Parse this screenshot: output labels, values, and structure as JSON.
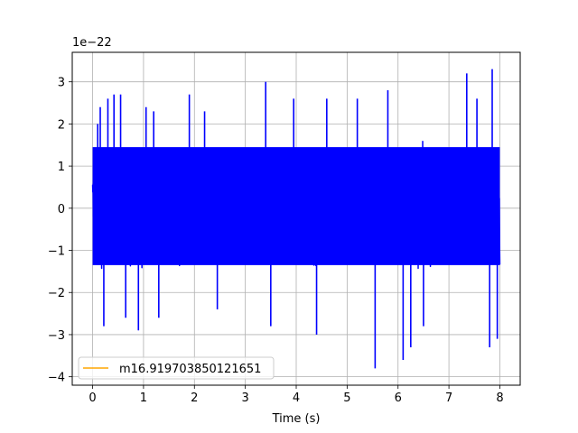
{
  "chart_data": {
    "type": "line",
    "xlabel": "Time (s)",
    "ylabel": "",
    "y_offset_label": "1e−22",
    "xlim": [
      -0.4,
      8.4
    ],
    "ylim": [
      -4.2,
      3.7
    ],
    "x_ticks": [
      0,
      1,
      2,
      3,
      4,
      5,
      6,
      7,
      8
    ],
    "x_tick_labels": [
      "0",
      "1",
      "2",
      "3",
      "4",
      "5",
      "6",
      "7",
      "8"
    ],
    "y_ticks": [
      -4,
      -3,
      -2,
      -1,
      0,
      1,
      2,
      3
    ],
    "y_tick_labels": [
      "−4",
      "−3",
      "−2",
      "−1",
      "0",
      "1",
      "2",
      "3"
    ],
    "grid": true,
    "legend_position": "lower-left",
    "series": [
      {
        "name": "",
        "color": "#0000ff",
        "x_range": [
          0,
          8
        ],
        "y_envelope": [
          -3.8,
          3.3
        ],
        "description_values": {
          "typical_upper": 1.7,
          "typical_lower": -1.7,
          "peak_max": 3.3,
          "peak_min": -3.8
        }
      },
      {
        "name": "m16.919703850121651",
        "color": "#ffa500",
        "values": []
      }
    ],
    "spikes": [
      {
        "x": 0.1,
        "y": 2.0
      },
      {
        "x": 0.15,
        "y": 2.4
      },
      {
        "x": 0.22,
        "y": -2.8
      },
      {
        "x": 0.3,
        "y": 2.6
      },
      {
        "x": 0.42,
        "y": 2.7
      },
      {
        "x": 0.55,
        "y": 2.7
      },
      {
        "x": 0.65,
        "y": -2.6
      },
      {
        "x": 0.9,
        "y": -2.9
      },
      {
        "x": 1.05,
        "y": 2.4
      },
      {
        "x": 1.2,
        "y": 2.3
      },
      {
        "x": 1.3,
        "y": -2.6
      },
      {
        "x": 1.9,
        "y": 2.7
      },
      {
        "x": 2.2,
        "y": 2.3
      },
      {
        "x": 2.45,
        "y": -2.4
      },
      {
        "x": 3.4,
        "y": 3.0
      },
      {
        "x": 3.5,
        "y": -2.8
      },
      {
        "x": 3.95,
        "y": 2.6
      },
      {
        "x": 4.4,
        "y": -3.0
      },
      {
        "x": 4.6,
        "y": 2.6
      },
      {
        "x": 5.2,
        "y": 2.6
      },
      {
        "x": 5.55,
        "y": -3.8
      },
      {
        "x": 5.8,
        "y": 2.8
      },
      {
        "x": 6.1,
        "y": -3.6
      },
      {
        "x": 6.25,
        "y": -3.3
      },
      {
        "x": 6.5,
        "y": -2.8
      },
      {
        "x": 7.35,
        "y": 3.2
      },
      {
        "x": 7.55,
        "y": 2.6
      },
      {
        "x": 7.8,
        "y": -3.3
      },
      {
        "x": 7.85,
        "y": 3.3
      },
      {
        "x": 7.95,
        "y": -3.1
      }
    ]
  }
}
